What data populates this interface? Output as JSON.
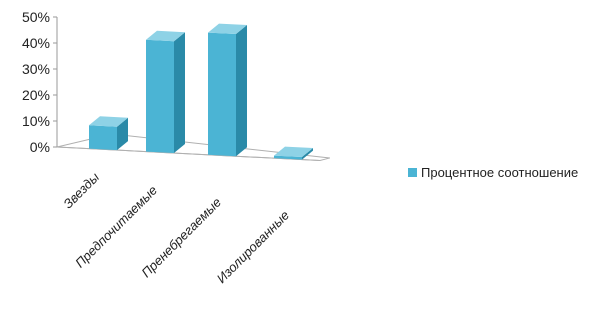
{
  "chart_data": {
    "type": "bar",
    "title": "",
    "xlabel": "",
    "ylabel": "",
    "categories": [
      "Звезды",
      "Предпочитаемые",
      "Пренебрегаемые",
      "Изолированные"
    ],
    "series": [
      {
        "name": "Процентное соотношение",
        "values": [
          0.09,
          0.43,
          0.47,
          0.01
        ]
      }
    ],
    "ylim": [
      0,
      0.5
    ],
    "y_ticks": [
      "0%",
      "10%",
      "20%",
      "30%",
      "40%",
      "50%"
    ],
    "grid": false,
    "legend_position": "right",
    "colors": {
      "bar_front": "#4bb4d4",
      "bar_side": "#2a8aa8",
      "bar_top": "#8ed2e6",
      "floor": "#b0b0b0",
      "axis": "#9a9a9a"
    }
  }
}
